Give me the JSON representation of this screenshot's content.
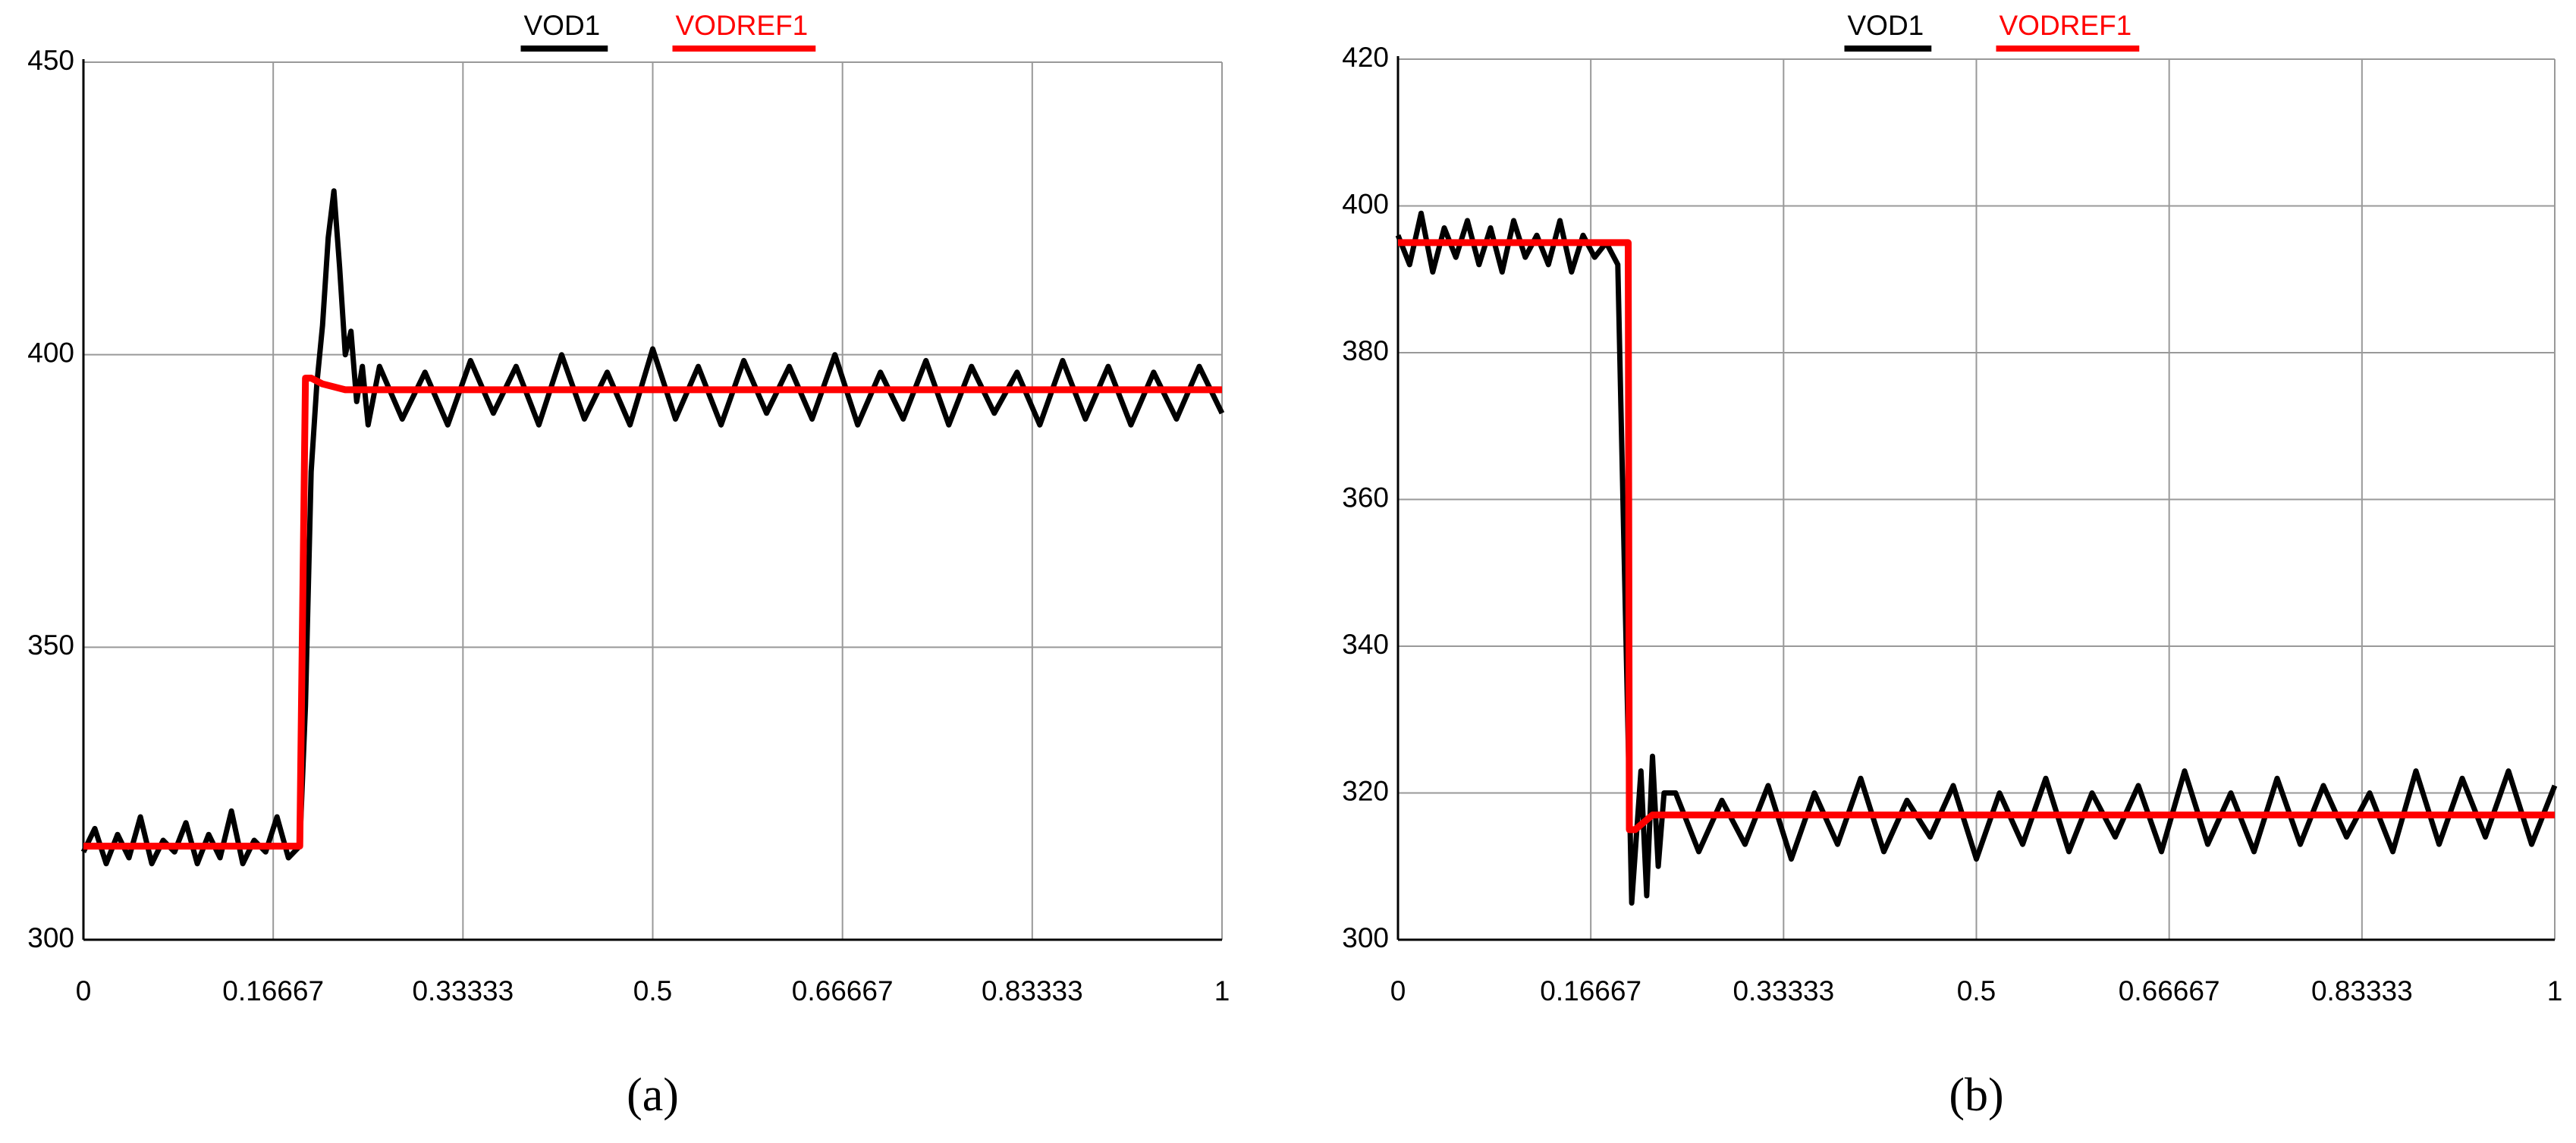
{
  "chart_data": [
    {
      "type": "line",
      "caption": "(a)",
      "xlim": [
        0,
        1
      ],
      "xticks": [
        0,
        0.16667,
        0.33333,
        0.5,
        0.66667,
        0.83333,
        1
      ],
      "ylim": [
        300,
        450
      ],
      "yticks": [
        300,
        350,
        400,
        450
      ],
      "grid": true,
      "series": [
        {
          "name": "VOD1",
          "color": "#000000",
          "x": [
            0,
            0.01,
            0.02,
            0.03,
            0.04,
            0.05,
            0.06,
            0.07,
            0.08,
            0.09,
            0.1,
            0.11,
            0.12,
            0.13,
            0.14,
            0.15,
            0.16,
            0.17,
            0.18,
            0.19,
            0.195,
            0.2,
            0.205,
            0.21,
            0.215,
            0.22,
            0.225,
            0.23,
            0.235,
            0.24,
            0.245,
            0.25,
            0.26,
            0.28,
            0.3,
            0.32,
            0.34,
            0.36,
            0.38,
            0.4,
            0.42,
            0.44,
            0.46,
            0.48,
            0.5,
            0.52,
            0.54,
            0.56,
            0.58,
            0.6,
            0.62,
            0.64,
            0.66,
            0.68,
            0.7,
            0.72,
            0.74,
            0.76,
            0.78,
            0.8,
            0.82,
            0.84,
            0.86,
            0.88,
            0.9,
            0.92,
            0.94,
            0.96,
            0.98,
            1
          ],
          "values": [
            315,
            319,
            313,
            318,
            314,
            321,
            313,
            317,
            315,
            320,
            313,
            318,
            314,
            322,
            313,
            317,
            315,
            321,
            314,
            316,
            340,
            380,
            395,
            405,
            420,
            428,
            415,
            400,
            404,
            392,
            398,
            388,
            398,
            389,
            397,
            388,
            399,
            390,
            398,
            388,
            400,
            389,
            397,
            388,
            401,
            389,
            398,
            388,
            399,
            390,
            398,
            389,
            400,
            388,
            397,
            389,
            399,
            388,
            398,
            390,
            397,
            388,
            399,
            389,
            398,
            388,
            397,
            389,
            398,
            390
          ]
        },
        {
          "name": "VODREF1",
          "color": "#ff0000",
          "x": [
            0,
            0.19,
            0.195,
            0.2,
            0.21,
            0.23,
            1
          ],
          "values": [
            316,
            316,
            396,
            396,
            395,
            394,
            394
          ]
        }
      ]
    },
    {
      "type": "line",
      "caption": "(b)",
      "xlim": [
        0,
        1
      ],
      "xticks": [
        0,
        0.16667,
        0.33333,
        0.5,
        0.66667,
        0.83333,
        1
      ],
      "ylim": [
        300,
        420
      ],
      "yticks": [
        300,
        320,
        340,
        360,
        380,
        400,
        420
      ],
      "grid": true,
      "series": [
        {
          "name": "VOD1",
          "color": "#000000",
          "x": [
            0,
            0.01,
            0.02,
            0.03,
            0.04,
            0.05,
            0.06,
            0.07,
            0.08,
            0.09,
            0.1,
            0.11,
            0.12,
            0.13,
            0.14,
            0.15,
            0.16,
            0.17,
            0.18,
            0.19,
            0.2,
            0.202,
            0.21,
            0.215,
            0.22,
            0.225,
            0.23,
            0.24,
            0.26,
            0.28,
            0.3,
            0.32,
            0.34,
            0.36,
            0.38,
            0.4,
            0.42,
            0.44,
            0.46,
            0.48,
            0.5,
            0.52,
            0.54,
            0.56,
            0.58,
            0.6,
            0.62,
            0.64,
            0.66,
            0.68,
            0.7,
            0.72,
            0.74,
            0.76,
            0.78,
            0.8,
            0.82,
            0.84,
            0.86,
            0.88,
            0.9,
            0.92,
            0.94,
            0.96,
            0.98,
            1
          ],
          "values": [
            396,
            392,
            399,
            391,
            397,
            393,
            398,
            392,
            397,
            391,
            398,
            393,
            396,
            392,
            398,
            391,
            396,
            393,
            395,
            392,
            320,
            305,
            323,
            306,
            325,
            310,
            320,
            320,
            312,
            319,
            313,
            321,
            311,
            320,
            313,
            322,
            312,
            319,
            314,
            321,
            311,
            320,
            313,
            322,
            312,
            320,
            314,
            321,
            312,
            323,
            313,
            320,
            312,
            322,
            313,
            321,
            314,
            320,
            312,
            323,
            313,
            322,
            314,
            323,
            313,
            321
          ]
        },
        {
          "name": "VODREF1",
          "color": "#ff0000",
          "x": [
            0,
            0.199,
            0.2,
            0.205,
            0.22,
            1
          ],
          "values": [
            395,
            395,
            315,
            315,
            317,
            317
          ]
        }
      ]
    }
  ]
}
